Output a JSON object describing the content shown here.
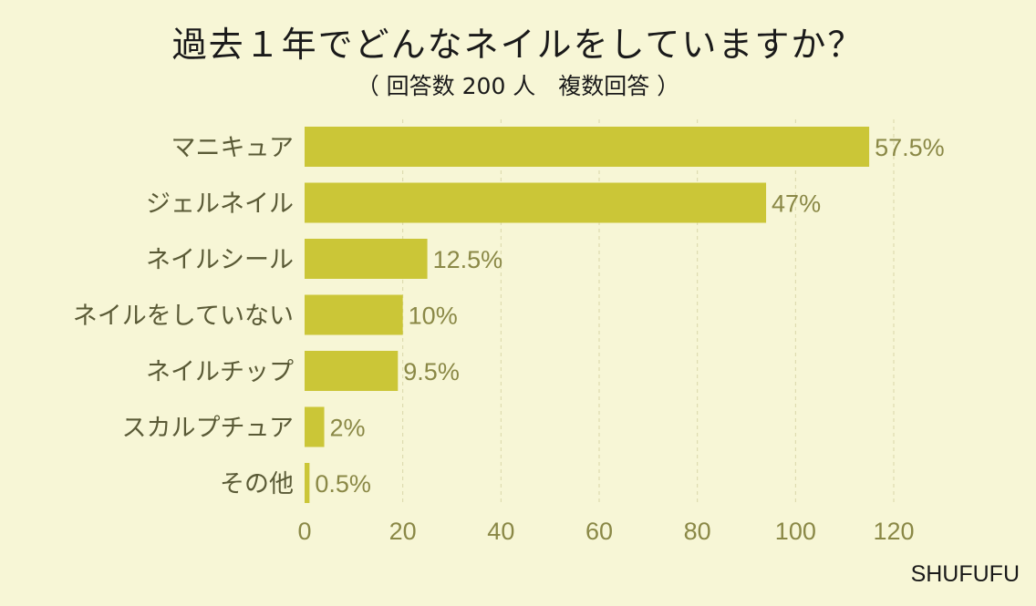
{
  "title": "過去１年でどんなネイルをしていますか？",
  "subtitle": "（ 回答数 200 人　複数回答 ）",
  "brand": "SHUFUFU",
  "colors": {
    "background": "#f7f6d6",
    "bar": "#cbc637",
    "text": "#1a1a1a",
    "axis_text": "#8a8846",
    "category_text": "#5a5a36",
    "grid": "#d9d7a8"
  },
  "chart_data": {
    "type": "bar",
    "orientation": "horizontal",
    "categories": [
      "マニキュア",
      "ジェルネイル",
      "ネイルシール",
      "ネイルをしていない",
      "ネイルチップ",
      "スカルプチュア",
      "その他"
    ],
    "values": [
      115,
      94,
      25,
      20,
      19,
      4,
      1
    ],
    "value_labels": [
      "57.5%",
      "47%",
      "12.5%",
      "10%",
      "9.5%",
      "2%",
      "0.5%"
    ],
    "xticks": [
      "0",
      "20",
      "40",
      "60",
      "80",
      "100",
      "120"
    ],
    "xlim": [
      0,
      120
    ],
    "grid": "vertical dashed"
  }
}
